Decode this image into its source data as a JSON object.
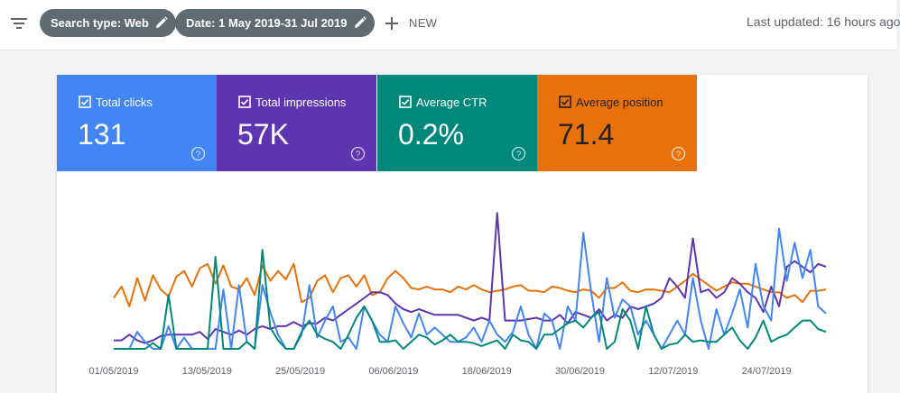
{
  "toolbar": {
    "filter_icon": "filter-list-icon",
    "chips": [
      {
        "label": "Search type: Web",
        "icon": "pencil-icon"
      },
      {
        "label": "Date: 1 May 2019-31 Jul 2019",
        "icon": "pencil-icon"
      }
    ],
    "new_label": "NEW",
    "last_updated": "Last updated: 16 hours ago"
  },
  "metrics": [
    {
      "label": "Total clicks",
      "value": "131",
      "color": "#4285f4",
      "checked": true
    },
    {
      "label": "Total impressions",
      "value": "57K",
      "color": "#5e35b1",
      "checked": true
    },
    {
      "label": "Average CTR",
      "value": "0.2%",
      "color": "#00897b",
      "checked": true
    },
    {
      "label": "Average position",
      "value": "71.4",
      "color": "#e8710a",
      "checked": true
    }
  ],
  "chart_data": {
    "type": "line",
    "x_tick_labels": [
      "01/05/2019",
      "13/05/2019",
      "25/05/2019",
      "06/06/2019",
      "18/06/2019",
      "30/06/2019",
      "12/07/2019",
      "24/07/2019"
    ],
    "x_range": [
      "01/05/2019",
      "31/07/2019"
    ],
    "grid": false,
    "legend": "none",
    "series": [
      {
        "name": "Average position",
        "color": "#e8710a",
        "values": [
          0.36,
          0.44,
          0.3,
          0.5,
          0.34,
          0.52,
          0.42,
          0.37,
          0.51,
          0.55,
          0.44,
          0.57,
          0.6,
          0.46,
          0.59,
          0.44,
          0.42,
          0.5,
          0.38,
          0.59,
          0.48,
          0.55,
          0.49,
          0.6,
          0.33,
          0.36,
          0.48,
          0.52,
          0.4,
          0.5,
          0.52,
          0.44,
          0.52,
          0.38,
          0.4,
          0.5,
          0.55,
          0.5,
          0.43,
          0.42,
          0.44,
          0.42,
          0.42,
          0.4,
          0.44,
          0.42,
          0.45,
          0.42,
          0.4,
          0.41,
          0.42,
          0.44,
          0.45,
          0.41,
          0.41,
          0.4,
          0.44,
          0.43,
          0.41,
          0.4,
          0.42,
          0.41,
          0.36,
          0.43,
          0.43,
          0.47,
          0.41,
          0.4,
          0.42,
          0.42,
          0.41,
          0.4,
          0.44,
          0.48,
          0.53,
          0.49,
          0.45,
          0.41,
          0.44,
          0.47,
          0.46,
          0.46,
          0.44,
          0.42,
          0.4,
          0.4,
          0.36,
          0.38,
          0.33,
          0.41,
          0.41,
          0.42
        ]
      },
      {
        "name": "Total impressions",
        "color": "#5e35b1",
        "values": [
          0.06,
          0.06,
          0.1,
          0.06,
          0.04,
          0.06,
          0.09,
          0.1,
          0.1,
          0.1,
          0.1,
          0.12,
          0.07,
          0.14,
          0.12,
          0.1,
          0.13,
          0.1,
          0.14,
          0.16,
          0.14,
          0.16,
          0.16,
          0.19,
          0.16,
          0.18,
          0.18,
          0.22,
          0.2,
          0.24,
          0.28,
          0.32,
          0.36,
          0.4,
          0.4,
          0.38,
          0.32,
          0.28,
          0.26,
          0.28,
          0.26,
          0.24,
          0.24,
          0.24,
          0.24,
          0.22,
          0.2,
          0.22,
          0.2,
          0.96,
          0.2,
          0.2,
          0.2,
          0.21,
          0.22,
          0.2,
          0.2,
          0.24,
          0.18,
          0.26,
          0.24,
          0.22,
          0.28,
          0.2,
          0.24,
          0.22,
          0.3,
          0.28,
          0.3,
          0.32,
          0.36,
          0.5,
          0.44,
          0.36,
          0.78,
          0.4,
          0.42,
          0.36,
          0.4,
          0.5,
          0.46,
          0.4,
          0.36,
          0.26,
          0.44,
          0.3,
          0.58,
          0.62,
          0.58,
          0.54,
          0.6,
          0.58
        ]
      },
      {
        "name": "Total clicks",
        "color": "#4285f4",
        "values": [
          0,
          0,
          0,
          0.12,
          0.05,
          0,
          0,
          0.16,
          0,
          0.08,
          0,
          0,
          0,
          0,
          0.42,
          0,
          0.45,
          0.05,
          0,
          0.45,
          0.26,
          0.1,
          0,
          0,
          0.1,
          0.45,
          0.08,
          0.2,
          0.3,
          0.05,
          0.08,
          0,
          0.3,
          0.2,
          0.1,
          0.05,
          0.3,
          0.18,
          0.08,
          0.25,
          0.1,
          0.15,
          0.1,
          0.05,
          0.05,
          0.08,
          0.15,
          0.05,
          0.2,
          0.1,
          0.05,
          0.12,
          0.3,
          0.1,
          0,
          0.25,
          0.2,
          0,
          0.3,
          0.2,
          0.82,
          0.4,
          0.05,
          0.5,
          0.22,
          0.35,
          0.3,
          0.1,
          0.2,
          0.1,
          0,
          0.1,
          0.2,
          0.1,
          0.5,
          0.2,
          0,
          0.28,
          0.1,
          0.25,
          0.42,
          0.15,
          0.6,
          0.3,
          0.2,
          0.85,
          0.48,
          0.75,
          0.5,
          0.7,
          0.3,
          0.25
        ]
      },
      {
        "name": "Average CTR",
        "color": "#00897b",
        "values": [
          0,
          0,
          0,
          0,
          0,
          0.04,
          0,
          0.38,
          0,
          0,
          0,
          0,
          0,
          0.65,
          0,
          0,
          0,
          0.05,
          0,
          0.7,
          0.15,
          0.06,
          0,
          0,
          0.12,
          0.2,
          0.1,
          0.07,
          0.05,
          0,
          0.1,
          0.22,
          0.3,
          0.2,
          0.05,
          0.05,
          0.06,
          0,
          0.05,
          0.1,
          0.08,
          0.03,
          0.06,
          0.1,
          0.05,
          0.05,
          0.04,
          0.02,
          0.04,
          0.06,
          0,
          0.1,
          0.06,
          0.05,
          0,
          0.1,
          0.1,
          0.14,
          0.18,
          0.2,
          0.15,
          0.22,
          0.26,
          0,
          0.05,
          0.28,
          0.2,
          0,
          0.3,
          0.1,
          0,
          0.03,
          0.04,
          0.1,
          0.05,
          0.06,
          0.05,
          0.05,
          0.1,
          0.15,
          0.06,
          0,
          0.08,
          0.2,
          0.05,
          0.08,
          0.1,
          0.15,
          0.2,
          0.2,
          0.14,
          0.12
        ]
      }
    ]
  }
}
